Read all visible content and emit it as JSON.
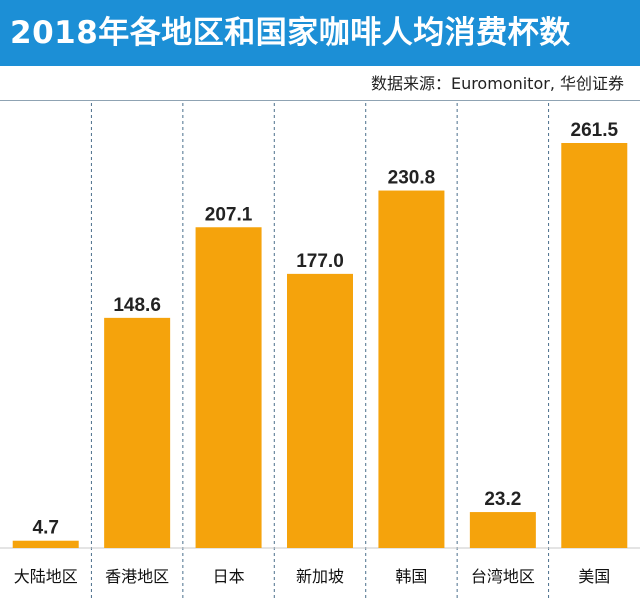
{
  "header": {
    "title": "2018年各地区和国家咖啡人均消费杯数",
    "source": "数据来源：Euromonitor, 华创证券"
  },
  "colors": {
    "header_bg": "#1c8fd6",
    "bar": "#f5a30c",
    "divider": "#4b6f8c",
    "text": "#222222"
  },
  "chart_data": {
    "type": "bar",
    "title": "2018年各地区和国家咖啡人均消费杯数",
    "categories": [
      "大陆地区",
      "香港地区",
      "日本",
      "新加坡",
      "韩国",
      "台湾地区",
      "美国"
    ],
    "values": [
      4.7,
      148.6,
      207.1,
      177.0,
      230.8,
      23.2,
      261.5
    ],
    "value_labels": [
      "4.7",
      "148.6",
      "207.1",
      "177.0",
      "230.8",
      "23.2",
      "261.5"
    ],
    "xlabel": "",
    "ylabel": "",
    "ylim": [
      0,
      261.5
    ],
    "grid": false,
    "legend": "none"
  }
}
